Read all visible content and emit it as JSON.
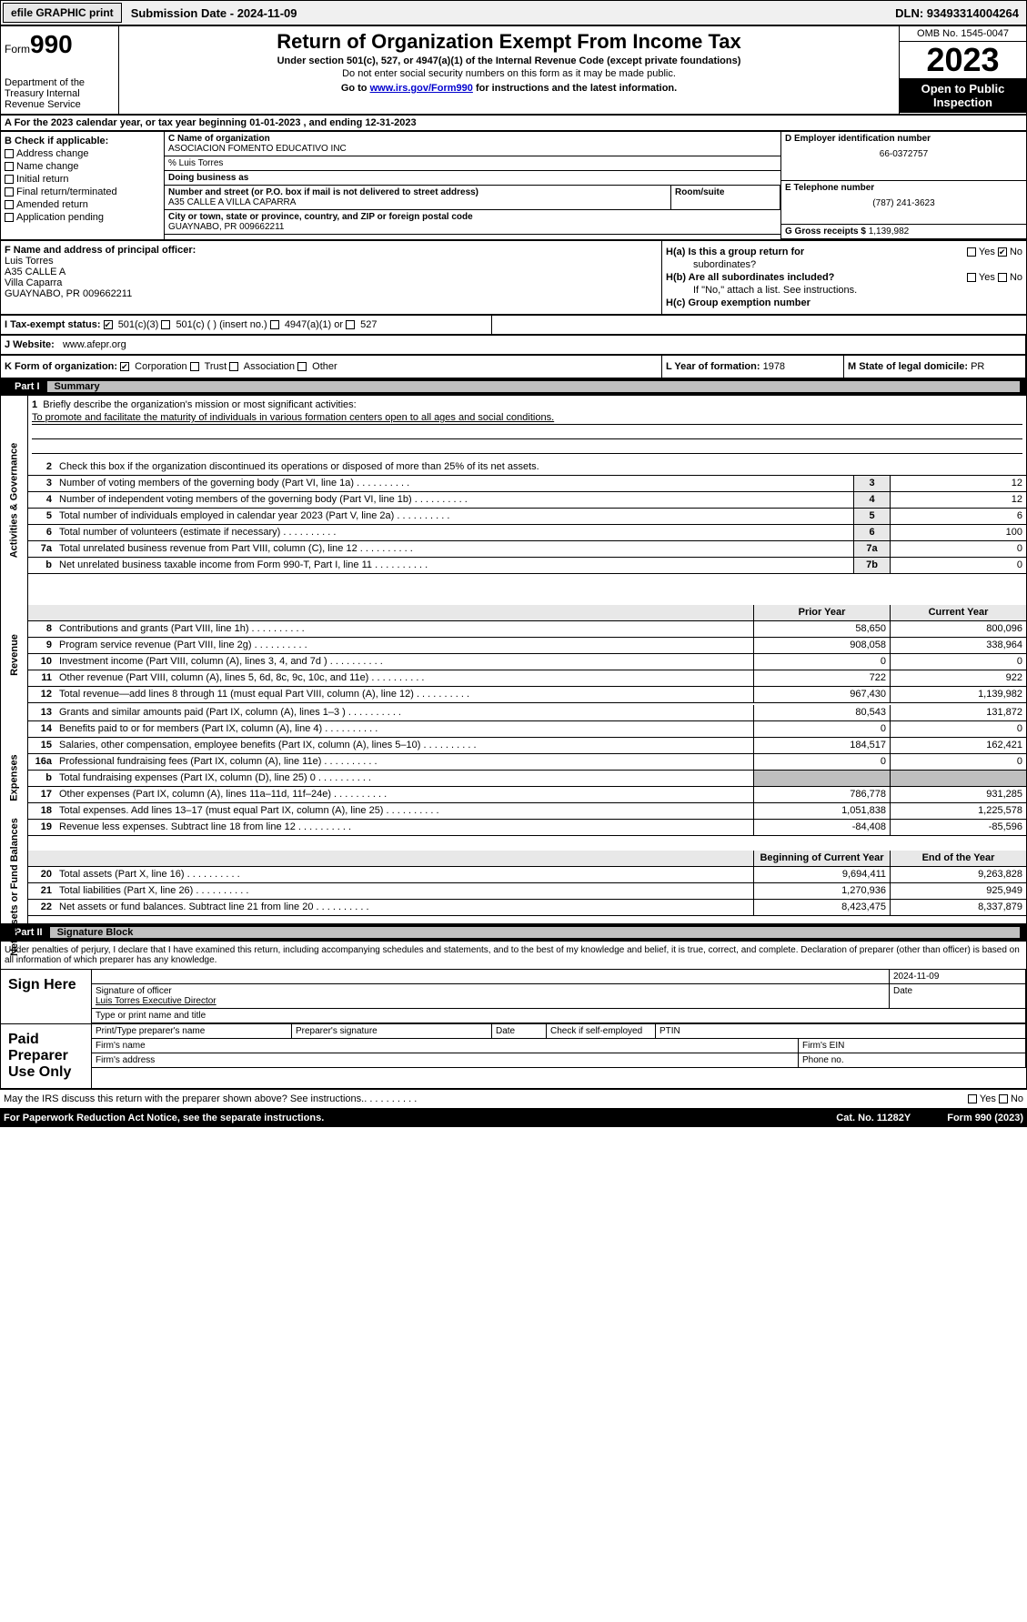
{
  "topbar": {
    "efile": "efile GRAPHIC print",
    "submission": "Submission Date - 2024-11-09",
    "dln": "DLN: 93493314004264"
  },
  "header": {
    "form_label": "Form",
    "form_num": "990",
    "dept": "Department of the Treasury Internal Revenue Service",
    "title": "Return of Organization Exempt From Income Tax",
    "sub1": "Under section 501(c), 527, or 4947(a)(1) of the Internal Revenue Code (except private foundations)",
    "sub2": "Do not enter social security numbers on this form as it may be made public.",
    "goto_pre": "Go to ",
    "goto_link": "www.irs.gov/Form990",
    "goto_post": " for instructions and the latest information.",
    "omb": "OMB No. 1545-0047",
    "year": "2023",
    "open": "Open to Public Inspection"
  },
  "row_a": "A  For the 2023 calendar year, or tax year beginning 01-01-2023    , and ending 12-31-2023",
  "box_b": {
    "title": "B Check if applicable:",
    "items": [
      "Address change",
      "Name change",
      "Initial return",
      "Final return/terminated",
      "Amended return",
      "Application pending"
    ]
  },
  "box_c": {
    "name_lbl": "C Name of organization",
    "name": "ASOCIACION FOMENTO EDUCATIVO INC",
    "care_of": "% Luis Torres",
    "dba_lbl": "Doing business as",
    "addr_lbl": "Number and street (or P.O. box if mail is not delivered to street address)",
    "addr": "A35 CALLE A VILLA CAPARRA",
    "room_lbl": "Room/suite",
    "city_lbl": "City or town, state or province, country, and ZIP or foreign postal code",
    "city": "GUAYNABO, PR  009662211"
  },
  "box_d": {
    "lbl": "D Employer identification number",
    "val": "66-0372757"
  },
  "box_e": {
    "lbl": "E Telephone number",
    "val": "(787) 241-3623"
  },
  "box_g": {
    "lbl": "G Gross receipts $",
    "val": "1,139,982"
  },
  "box_f": {
    "lbl": "F  Name and address of principal officer:",
    "lines": [
      "Luis Torres",
      "A35 CALLE A",
      "Villa Caparra",
      "GUAYNABO, PR  009662211"
    ]
  },
  "box_h": {
    "ha": "H(a)  Is this a group return for",
    "ha2": "subordinates?",
    "hb": "H(b)  Are all subordinates included?",
    "hb2": "If \"No,\" attach a list. See instructions.",
    "hc": "H(c)  Group exemption number",
    "yes": "Yes",
    "no": "No"
  },
  "row_i": {
    "lbl": "I   Tax-exempt status:",
    "opts": [
      "501(c)(3)",
      "501(c) (  ) (insert no.)",
      "4947(a)(1) or",
      "527"
    ]
  },
  "row_j": {
    "lbl": "J   Website:",
    "val": "www.afepr.org"
  },
  "row_k": {
    "lbl": "K Form of organization:",
    "opts": [
      "Corporation",
      "Trust",
      "Association",
      "Other"
    ],
    "l_lbl": "L Year of formation:",
    "l_val": "1978",
    "m_lbl": "M State of legal domicile:",
    "m_val": "PR"
  },
  "part1": {
    "num": "Part I",
    "title": "Summary"
  },
  "summary": {
    "line1_lbl": "Briefly describe the organization's mission or most significant activities:",
    "line1_val": "To promote and facilitate the maturity of individuals in various formation centers open to all ages and social conditions.",
    "line2": "Check this box      if the organization discontinued its operations or disposed of more than 25% of its net assets.",
    "gov_lines": [
      {
        "n": "3",
        "d": "Number of voting members of the governing body (Part VI, line 1a)",
        "box": "3",
        "v": "12"
      },
      {
        "n": "4",
        "d": "Number of independent voting members of the governing body (Part VI, line 1b)",
        "box": "4",
        "v": "12"
      },
      {
        "n": "5",
        "d": "Total number of individuals employed in calendar year 2023 (Part V, line 2a)",
        "box": "5",
        "v": "6"
      },
      {
        "n": "6",
        "d": "Total number of volunteers (estimate if necessary)",
        "box": "6",
        "v": "100"
      },
      {
        "n": "7a",
        "d": "Total unrelated business revenue from Part VIII, column (C), line 12",
        "box": "7a",
        "v": "0"
      },
      {
        "n": "b",
        "d": "Net unrelated business taxable income from Form 990-T, Part I, line 11",
        "box": "7b",
        "v": "0"
      }
    ],
    "col_hdrs": {
      "prior": "Prior Year",
      "current": "Current Year"
    },
    "revenue": [
      {
        "n": "8",
        "d": "Contributions and grants (Part VIII, line 1h)",
        "p": "58,650",
        "c": "800,096"
      },
      {
        "n": "9",
        "d": "Program service revenue (Part VIII, line 2g)",
        "p": "908,058",
        "c": "338,964"
      },
      {
        "n": "10",
        "d": "Investment income (Part VIII, column (A), lines 3, 4, and 7d )",
        "p": "0",
        "c": "0"
      },
      {
        "n": "11",
        "d": "Other revenue (Part VIII, column (A), lines 5, 6d, 8c, 9c, 10c, and 11e)",
        "p": "722",
        "c": "922"
      },
      {
        "n": "12",
        "d": "Total revenue—add lines 8 through 11 (must equal Part VIII, column (A), line 12)",
        "p": "967,430",
        "c": "1,139,982"
      }
    ],
    "expenses": [
      {
        "n": "13",
        "d": "Grants and similar amounts paid (Part IX, column (A), lines 1–3 )",
        "p": "80,543",
        "c": "131,872"
      },
      {
        "n": "14",
        "d": "Benefits paid to or for members (Part IX, column (A), line 4)",
        "p": "0",
        "c": "0"
      },
      {
        "n": "15",
        "d": "Salaries, other compensation, employee benefits (Part IX, column (A), lines 5–10)",
        "p": "184,517",
        "c": "162,421"
      },
      {
        "n": "16a",
        "d": "Professional fundraising fees (Part IX, column (A), line 11e)",
        "p": "0",
        "c": "0"
      },
      {
        "n": "b",
        "d": "Total fundraising expenses (Part IX, column (D), line 25) 0",
        "p": "",
        "c": "",
        "shaded": true
      },
      {
        "n": "17",
        "d": "Other expenses (Part IX, column (A), lines 11a–11d, 11f–24e)",
        "p": "786,778",
        "c": "931,285"
      },
      {
        "n": "18",
        "d": "Total expenses. Add lines 13–17 (must equal Part IX, column (A), line 25)",
        "p": "1,051,838",
        "c": "1,225,578"
      },
      {
        "n": "19",
        "d": "Revenue less expenses. Subtract line 18 from line 12",
        "p": "-84,408",
        "c": "-85,596"
      }
    ],
    "net_hdrs": {
      "begin": "Beginning of Current Year",
      "end": "End of the Year"
    },
    "netassets": [
      {
        "n": "20",
        "d": "Total assets (Part X, line 16)",
        "p": "9,694,411",
        "c": "9,263,828"
      },
      {
        "n": "21",
        "d": "Total liabilities (Part X, line 26)",
        "p": "1,270,936",
        "c": "925,949"
      },
      {
        "n": "22",
        "d": "Net assets or fund balances. Subtract line 21 from line 20",
        "p": "8,423,475",
        "c": "8,337,879"
      }
    ],
    "sidelabels": {
      "gov": "Activities & Governance",
      "rev": "Revenue",
      "exp": "Expenses",
      "net": "Net Assets or Fund Balances"
    }
  },
  "part2": {
    "num": "Part II",
    "title": "Signature Block"
  },
  "sig": {
    "decl": "Under penalties of perjury, I declare that I have examined this return, including accompanying schedules and statements, and to the best of my knowledge and belief, it is true, correct, and complete. Declaration of preparer (other than officer) is based on all information of which preparer has any knowledge.",
    "sign_here": "Sign Here",
    "sig_officer": "Signature of officer",
    "officer_name": "Luis Torres  Executive Director",
    "type_title": "Type or print name and title",
    "date_lbl": "Date",
    "date_val": "2024-11-09",
    "paid": "Paid Preparer Use Only",
    "prep_name": "Print/Type preparer's name",
    "prep_sig": "Preparer's signature",
    "check_self": "Check        if self-employed",
    "ptin": "PTIN",
    "firm_name": "Firm's name",
    "firm_ein": "Firm's EIN",
    "firm_addr": "Firm's address",
    "phone": "Phone no."
  },
  "footer": {
    "discuss": "May the IRS discuss this return with the preparer shown above? See instructions.",
    "yes": "Yes",
    "no": "No",
    "paperwork": "For Paperwork Reduction Act Notice, see the separate instructions.",
    "cat": "Cat. No. 11282Y",
    "form": "Form 990 (2023)"
  }
}
